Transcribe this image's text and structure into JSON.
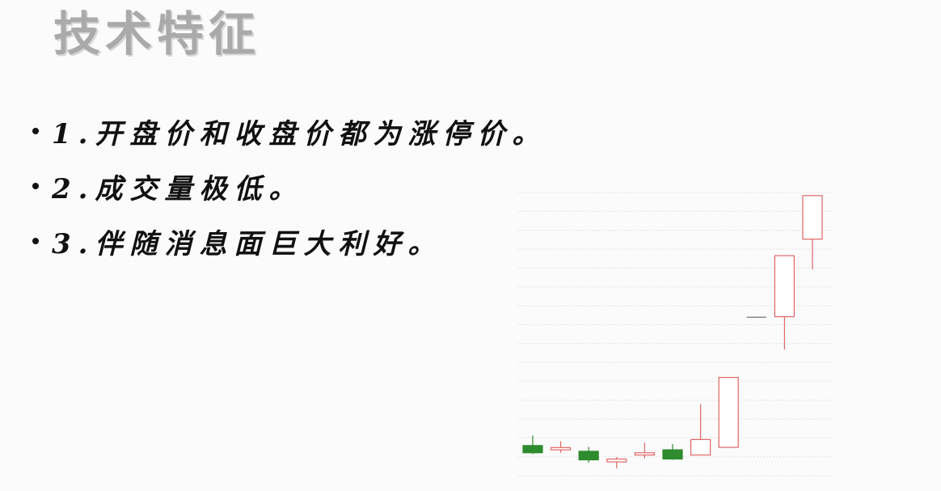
{
  "slide": {
    "title": "技术特征",
    "bullets": [
      "1.开盘价和收盘价都为涨停价。",
      "2.成交量极低。",
      "3.伴随消息面巨大利好。"
    ]
  },
  "chart_data": {
    "type": "candlestick",
    "title": "",
    "xlabel": "",
    "ylabel": "",
    "grid": true,
    "ylim": [
      0,
      100
    ],
    "colors": {
      "up": "#e06666",
      "down": "#2e8b2e"
    },
    "candles": [
      {
        "open": 10.5,
        "close": 8.0,
        "high": 14.0,
        "low": 7.5
      },
      {
        "open": 9.0,
        "close": 9.8,
        "high": 12.0,
        "low": 8.0
      },
      {
        "open": 8.5,
        "close": 5.5,
        "high": 10.0,
        "low": 4.5
      },
      {
        "open": 4.8,
        "close": 5.8,
        "high": 6.5,
        "low": 2.5
      },
      {
        "open": 7.2,
        "close": 8.0,
        "high": 11.5,
        "low": 6.0
      },
      {
        "open": 9.0,
        "close": 5.8,
        "high": 11.0,
        "low": 5.5
      },
      {
        "open": 7.2,
        "close": 12.6,
        "high": 25.0,
        "low": 7.2
      },
      {
        "open": 9.9,
        "close": 34.3,
        "high": 34.3,
        "low": 9.9
      },
      {
        "open": 55.3,
        "close": 55.3,
        "high": 55.3,
        "low": 55.3
      },
      {
        "open": 55.5,
        "close": 76.8,
        "high": 76.8,
        "low": 44.0
      },
      {
        "open": 82.6,
        "close": 97.8,
        "high": 97.8,
        "low": 72.0
      }
    ]
  }
}
